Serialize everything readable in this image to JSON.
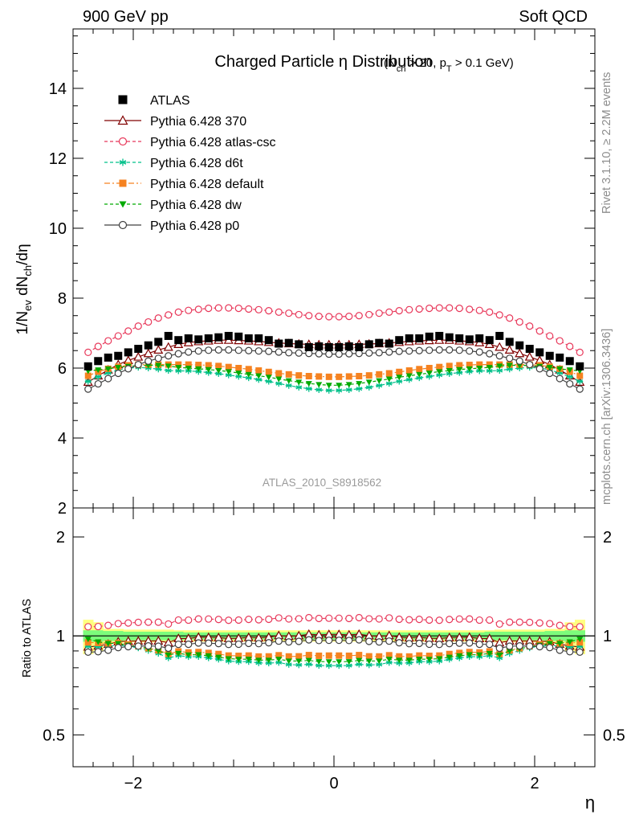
{
  "header": {
    "left": "900 GeV pp",
    "right": "Soft QCD"
  },
  "side_text": {
    "rivet": "Rivet 3.1.10, ≥ 2.2M events",
    "mcplots": "mcplots.cern.ch [arXiv:1306.3436]"
  },
  "watermark": "ATLAS_2010_S8918562",
  "chart_data": [
    {
      "type": "scatter",
      "title": "Charged Particle η Distribution",
      "subtitle": "(N_ch > 20, p_T > 0.1 GeV)",
      "xlabel": "η",
      "ylabel": "1/N_ev dN_ch/dη",
      "xlim": [
        -2.6,
        2.6
      ],
      "ylim": [
        2,
        15.7
      ],
      "yticks": [
        "2",
        "4",
        "6",
        "8",
        "10",
        "12",
        "14"
      ],
      "xticks": [
        "−2",
        "0",
        "2"
      ],
      "legend_position": "top-left",
      "x": [
        -2.45,
        -2.35,
        -2.25,
        -2.15,
        -2.05,
        -1.95,
        -1.85,
        -1.75,
        -1.65,
        -1.55,
        -1.45,
        -1.35,
        -1.25,
        -1.15,
        -1.05,
        -0.95,
        -0.85,
        -0.75,
        -0.65,
        -0.55,
        -0.45,
        -0.35,
        -0.25,
        -0.15,
        -0.05,
        0.05,
        0.15,
        0.25,
        0.35,
        0.45,
        0.55,
        0.65,
        0.75,
        0.85,
        0.95,
        1.05,
        1.15,
        1.25,
        1.35,
        1.45,
        1.55,
        1.65,
        1.75,
        1.85,
        1.95,
        2.05,
        2.15,
        2.25,
        2.35,
        2.45
      ],
      "series": [
        {
          "name": "ATLAS",
          "color": "#000000",
          "marker": "square-filled",
          "line": "none",
          "values": [
            6.05,
            6.2,
            6.3,
            6.35,
            6.45,
            6.55,
            6.65,
            6.75,
            6.92,
            6.8,
            6.85,
            6.82,
            6.85,
            6.88,
            6.92,
            6.9,
            6.85,
            6.85,
            6.8,
            6.7,
            6.72,
            6.68,
            6.6,
            6.62,
            6.6,
            6.6,
            6.62,
            6.6,
            6.68,
            6.72,
            6.7,
            6.8,
            6.85,
            6.85,
            6.9,
            6.92,
            6.88,
            6.85,
            6.82,
            6.85,
            6.8,
            6.92,
            6.75,
            6.65,
            6.55,
            6.45,
            6.35,
            6.3,
            6.2,
            6.05
          ]
        },
        {
          "name": "Pythia 6.428 370",
          "color": "#800000",
          "marker": "triangle-open",
          "line": "solid",
          "values": [
            5.6,
            5.78,
            5.95,
            6.1,
            6.22,
            6.32,
            6.42,
            6.52,
            6.6,
            6.68,
            6.73,
            6.76,
            6.78,
            6.8,
            6.8,
            6.79,
            6.78,
            6.76,
            6.74,
            6.72,
            6.7,
            6.69,
            6.68,
            6.67,
            6.67,
            6.67,
            6.67,
            6.68,
            6.69,
            6.7,
            6.72,
            6.74,
            6.76,
            6.78,
            6.79,
            6.8,
            6.8,
            6.78,
            6.76,
            6.73,
            6.68,
            6.6,
            6.52,
            6.42,
            6.32,
            6.22,
            6.1,
            5.95,
            5.78,
            5.6
          ]
        },
        {
          "name": "Pythia 6.428 atlas-csc",
          "color": "#e8385a",
          "marker": "circle-open",
          "line": "dashed",
          "values": [
            6.45,
            6.62,
            6.78,
            6.92,
            7.06,
            7.2,
            7.32,
            7.43,
            7.52,
            7.6,
            7.65,
            7.68,
            7.71,
            7.72,
            7.72,
            7.71,
            7.69,
            7.67,
            7.64,
            7.6,
            7.57,
            7.53,
            7.5,
            7.48,
            7.47,
            7.47,
            7.48,
            7.5,
            7.53,
            7.57,
            7.6,
            7.64,
            7.67,
            7.69,
            7.71,
            7.72,
            7.72,
            7.71,
            7.68,
            7.65,
            7.6,
            7.52,
            7.43,
            7.32,
            7.2,
            7.06,
            6.92,
            6.78,
            6.62,
            6.45
          ]
        },
        {
          "name": "Pythia 6.428 d6t",
          "color": "#00c08a",
          "marker": "asterisk",
          "line": "dashed",
          "values": [
            5.62,
            5.75,
            5.86,
            5.95,
            6.0,
            6.02,
            6.0,
            5.97,
            5.93,
            5.92,
            5.92,
            5.9,
            5.87,
            5.84,
            5.8,
            5.76,
            5.72,
            5.67,
            5.62,
            5.56,
            5.5,
            5.45,
            5.41,
            5.38,
            5.36,
            5.36,
            5.38,
            5.41,
            5.45,
            5.5,
            5.56,
            5.62,
            5.67,
            5.72,
            5.76,
            5.8,
            5.84,
            5.87,
            5.9,
            5.92,
            5.92,
            5.93,
            5.97,
            6.0,
            6.02,
            6.0,
            5.95,
            5.86,
            5.75,
            5.62
          ]
        },
        {
          "name": "Pythia 6.428 default",
          "color": "#f58220",
          "marker": "square-filled",
          "line": "dashdot",
          "values": [
            5.78,
            5.9,
            5.98,
            6.04,
            6.08,
            6.1,
            6.1,
            6.1,
            6.1,
            6.1,
            6.1,
            6.09,
            6.08,
            6.06,
            6.03,
            6.0,
            5.97,
            5.93,
            5.89,
            5.85,
            5.82,
            5.79,
            5.77,
            5.76,
            5.75,
            5.75,
            5.76,
            5.77,
            5.79,
            5.82,
            5.85,
            5.89,
            5.93,
            5.97,
            6.0,
            6.03,
            6.06,
            6.08,
            6.09,
            6.1,
            6.1,
            6.1,
            6.1,
            6.1,
            6.1,
            6.08,
            6.04,
            5.98,
            5.9,
            5.78
          ]
        },
        {
          "name": "Pythia 6.428 dw",
          "color": "#00aa00",
          "marker": "triangle-down-filled",
          "line": "dashed",
          "values": [
            5.92,
            5.95,
            5.98,
            6.02,
            6.05,
            6.07,
            6.08,
            6.08,
            6.06,
            6.02,
            6.0,
            5.98,
            5.96,
            5.93,
            5.9,
            5.86,
            5.82,
            5.78,
            5.74,
            5.69,
            5.64,
            5.6,
            5.56,
            5.53,
            5.51,
            5.51,
            5.53,
            5.56,
            5.6,
            5.64,
            5.69,
            5.74,
            5.78,
            5.82,
            5.86,
            5.9,
            5.93,
            5.96,
            5.98,
            6.0,
            6.02,
            6.06,
            6.08,
            6.08,
            6.07,
            6.05,
            6.02,
            5.98,
            5.95,
            5.92
          ]
        },
        {
          "name": "Pythia 6.428 p0",
          "color": "#404040",
          "marker": "circle-open",
          "line": "solid",
          "values": [
            5.4,
            5.55,
            5.7,
            5.85,
            5.98,
            6.1,
            6.2,
            6.28,
            6.35,
            6.41,
            6.46,
            6.49,
            6.51,
            6.52,
            6.52,
            6.51,
            6.5,
            6.49,
            6.48,
            6.46,
            6.44,
            6.43,
            6.42,
            6.41,
            6.4,
            6.4,
            6.41,
            6.42,
            6.43,
            6.44,
            6.46,
            6.48,
            6.49,
            6.5,
            6.51,
            6.52,
            6.52,
            6.51,
            6.49,
            6.46,
            6.41,
            6.35,
            6.28,
            6.2,
            6.1,
            5.98,
            5.85,
            5.7,
            5.55,
            5.4
          ]
        }
      ]
    },
    {
      "type": "scatter",
      "ylabel": "Ratio to ATLAS",
      "xlabel": "η",
      "xlim": [
        -2.6,
        2.6
      ],
      "ylim": [
        0.4,
        2.45
      ],
      "yscale": "log",
      "yticks": [
        "0.5",
        "1",
        "2"
      ],
      "reference_line": 1,
      "bands": {
        "inner_color": "#7cfc7c",
        "outer_color": "#ffff80",
        "inner_halfwidth": [
          0.04,
          0.04,
          0.035,
          0.035,
          0.03,
          0.03,
          0.03,
          0.03,
          0.03,
          0.03,
          0.025,
          0.025,
          0.025,
          0.025,
          0.025,
          0.025,
          0.025,
          0.025,
          0.025,
          0.025,
          0.025,
          0.025,
          0.025,
          0.025,
          0.025,
          0.025,
          0.025,
          0.025,
          0.025,
          0.025,
          0.025,
          0.025,
          0.025,
          0.025,
          0.025,
          0.025,
          0.025,
          0.025,
          0.025,
          0.025,
          0.03,
          0.03,
          0.03,
          0.03,
          0.03,
          0.03,
          0.035,
          0.035,
          0.04,
          0.04
        ],
        "outer_halfwidth": [
          0.12,
          0.1,
          0.05,
          0.05,
          0.045,
          0.045,
          0.045,
          0.045,
          0.045,
          0.04,
          0.04,
          0.04,
          0.04,
          0.04,
          0.04,
          0.04,
          0.04,
          0.04,
          0.04,
          0.04,
          0.04,
          0.04,
          0.04,
          0.04,
          0.04,
          0.04,
          0.04,
          0.04,
          0.04,
          0.04,
          0.04,
          0.04,
          0.04,
          0.04,
          0.04,
          0.04,
          0.04,
          0.04,
          0.04,
          0.04,
          0.04,
          0.045,
          0.045,
          0.045,
          0.045,
          0.045,
          0.05,
          0.05,
          0.1,
          0.12
        ]
      }
    }
  ]
}
